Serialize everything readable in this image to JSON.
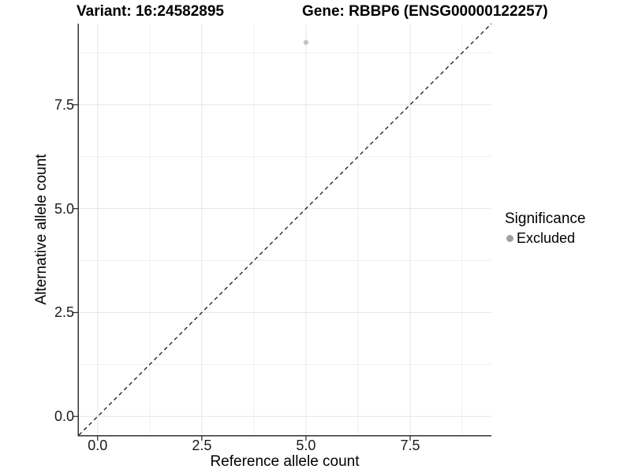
{
  "header": {
    "variant_title": "Variant: 16:24582895",
    "gene_title": "Gene: RBBP6 (ENSG00000122257)"
  },
  "chart_data": {
    "type": "scatter",
    "title_left": "Variant: 16:24582895",
    "title_right": "Gene: RBBP6 (ENSG00000122257)",
    "xlabel": "Reference allele count",
    "ylabel": "Alternative allele count",
    "xlim": [
      -0.45,
      9.45
    ],
    "ylim": [
      -0.45,
      9.45
    ],
    "x_ticks": {
      "values": [
        0,
        2.5,
        5,
        7.5
      ],
      "labels": [
        "0.0",
        "2.5",
        "5.0",
        "7.5"
      ]
    },
    "y_ticks": {
      "values": [
        0,
        2.5,
        5,
        7.5
      ],
      "labels": [
        "0.0",
        "2.5",
        "5.0",
        "7.5"
      ]
    },
    "x_minor": [
      1.25,
      3.75,
      6.25,
      8.75
    ],
    "y_minor": [
      1.25,
      3.75,
      6.25,
      8.75
    ],
    "grid": "major+minor",
    "reference_line": {
      "kind": "abline",
      "slope": 1,
      "intercept": 0,
      "linetype": "dashed",
      "color": "#1a1a1a"
    },
    "series": [
      {
        "name": "Excluded",
        "color": "#c4c4c4",
        "marker": "circle",
        "marker_radius": 3.2,
        "points": [
          {
            "x": 5,
            "y": 9
          }
        ]
      }
    ],
    "legend": {
      "title": "Significance",
      "position": "right",
      "entries": [
        {
          "label": "Excluded",
          "swatch_color": "#a1a1a1",
          "marker": "circle"
        }
      ]
    }
  },
  "colors": {
    "background": "#ffffff",
    "grid_major": "#e6e6e6",
    "grid_minor": "#efefef",
    "axis": "#333333",
    "tick_label": "#1a1a1a",
    "title": "#000000"
  }
}
